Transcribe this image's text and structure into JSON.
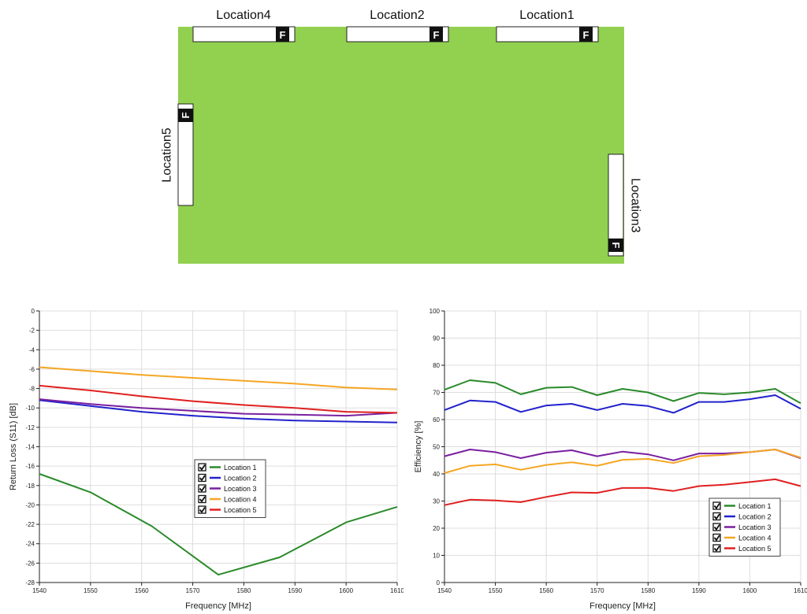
{
  "diagram": {
    "board_color": "#92d050",
    "locations": [
      {
        "id": "location4",
        "label": "Location4",
        "marker": "F"
      },
      {
        "id": "location2",
        "label": "Location2",
        "marker": "F"
      },
      {
        "id": "location1",
        "label": "Location1",
        "marker": "F"
      },
      {
        "id": "location5",
        "label": "Location5",
        "marker": "F"
      },
      {
        "id": "location3",
        "label": "Location3",
        "marker": "F"
      }
    ]
  },
  "chart_data": [
    {
      "type": "line",
      "xlabel": "Frequency [MHz]",
      "ylabel": "Return Loss (S11) [dB]",
      "xlim": [
        1540,
        1610
      ],
      "ylim": [
        -28,
        0
      ],
      "xticks": [
        1540,
        1550,
        1560,
        1570,
        1580,
        1590,
        1600,
        1610
      ],
      "yticks": [
        0,
        -2,
        -4,
        -6,
        -8,
        -10,
        -12,
        -14,
        -16,
        -18,
        -20,
        -22,
        -24,
        -26,
        -28
      ],
      "grid": true,
      "legend": "center",
      "series": [
        {
          "name": "Location 1",
          "color": "#2a8a2a",
          "x": [
            1540,
            1550,
            1562,
            1575,
            1587,
            1600,
            1610
          ],
          "y": [
            -16.8,
            -18.7,
            -22.2,
            -27.2,
            -25.4,
            -21.8,
            -20.2
          ]
        },
        {
          "name": "Location 2",
          "color": "#2222cc",
          "x": [
            1540,
            1550,
            1560,
            1570,
            1580,
            1590,
            1600,
            1610
          ],
          "y": [
            -9.2,
            -9.8,
            -10.4,
            -10.8,
            -11.1,
            -11.3,
            -11.4,
            -11.5
          ]
        },
        {
          "name": "Location 3",
          "color": "#7a1fa0",
          "x": [
            1540,
            1550,
            1560,
            1570,
            1580,
            1590,
            1600,
            1610
          ],
          "y": [
            -9.1,
            -9.6,
            -10.0,
            -10.3,
            -10.6,
            -10.7,
            -10.8,
            -10.5
          ]
        },
        {
          "name": "Location 4",
          "color": "#f5a623",
          "x": [
            1540,
            1550,
            1560,
            1570,
            1580,
            1590,
            1600,
            1610
          ],
          "y": [
            -5.8,
            -6.2,
            -6.6,
            -6.9,
            -7.2,
            -7.5,
            -7.9,
            -8.1
          ]
        },
        {
          "name": "Location 5",
          "color": "#e02020",
          "x": [
            1540,
            1550,
            1560,
            1570,
            1580,
            1590,
            1600,
            1610
          ],
          "y": [
            -7.7,
            -8.2,
            -8.8,
            -9.3,
            -9.7,
            -10.0,
            -10.4,
            -10.5
          ]
        }
      ]
    },
    {
      "type": "line",
      "xlabel": "Frequency [MHz]",
      "ylabel": "Efficiency [%]",
      "xlim": [
        1540,
        1610
      ],
      "ylim": [
        0,
        100
      ],
      "xticks": [
        1540,
        1550,
        1560,
        1570,
        1580,
        1590,
        1600,
        1610
      ],
      "yticks": [
        0,
        10,
        20,
        30,
        40,
        50,
        60,
        70,
        80,
        90,
        100
      ],
      "grid": true,
      "legend": "bottom-right",
      "series": [
        {
          "name": "Location 1",
          "color": "#2a8a2a",
          "x": [
            1540,
            1545,
            1550,
            1555,
            1560,
            1565,
            1570,
            1575,
            1580,
            1585,
            1590,
            1595,
            1600,
            1605,
            1610
          ],
          "y": [
            71.0,
            74.5,
            73.5,
            69.3,
            71.7,
            72.0,
            69.0,
            71.3,
            70.0,
            66.8,
            69.8,
            69.3,
            70.0,
            71.3,
            66.0
          ]
        },
        {
          "name": "Location 2",
          "color": "#2222cc",
          "x": [
            1540,
            1545,
            1550,
            1555,
            1560,
            1565,
            1570,
            1575,
            1580,
            1585,
            1590,
            1595,
            1600,
            1605,
            1610
          ],
          "y": [
            63.5,
            67.0,
            66.5,
            62.8,
            65.2,
            65.8,
            63.5,
            65.8,
            65.0,
            62.5,
            66.5,
            66.5,
            67.5,
            69.0,
            64.0
          ]
        },
        {
          "name": "Location 3",
          "color": "#7a1fa0",
          "x": [
            1540,
            1545,
            1550,
            1555,
            1560,
            1565,
            1570,
            1575,
            1580,
            1585,
            1590,
            1595,
            1600,
            1605,
            1610
          ],
          "y": [
            46.5,
            49.0,
            48.0,
            45.8,
            47.8,
            48.7,
            46.5,
            48.2,
            47.2,
            45.0,
            47.5,
            47.5,
            48.0,
            49.0,
            45.8
          ]
        },
        {
          "name": "Location 4",
          "color": "#f5a623",
          "x": [
            1540,
            1545,
            1550,
            1555,
            1560,
            1565,
            1570,
            1575,
            1580,
            1585,
            1590,
            1595,
            1600,
            1605,
            1610
          ],
          "y": [
            40.3,
            43.0,
            43.5,
            41.5,
            43.3,
            44.3,
            43.0,
            45.2,
            45.5,
            44.0,
            46.5,
            47.0,
            48.0,
            49.0,
            46.0
          ]
        },
        {
          "name": "Location 5",
          "color": "#e02020",
          "x": [
            1540,
            1545,
            1550,
            1555,
            1560,
            1565,
            1570,
            1575,
            1580,
            1585,
            1590,
            1595,
            1600,
            1605,
            1610
          ],
          "y": [
            28.5,
            30.5,
            30.2,
            29.6,
            31.5,
            33.2,
            33.0,
            34.8,
            34.8,
            33.7,
            35.5,
            36.0,
            37.0,
            38.0,
            35.5
          ]
        }
      ]
    }
  ]
}
